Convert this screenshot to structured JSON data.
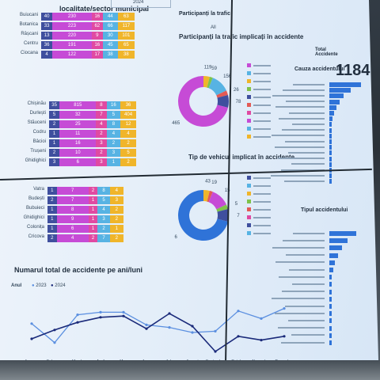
{
  "colors": {
    "c1": "#3f4f9e",
    "c2": "#c64bd6",
    "c3": "#e04aa2",
    "c4": "#57b3e3",
    "c5": "#f0b52a",
    "c6": "#7fc34a",
    "c7": "#e35a55",
    "c8": "#2f73d8"
  },
  "top_left": {
    "title": "localitate/sector municipal",
    "year": "2024"
  },
  "participanti": {
    "header": "Participanți la trafic",
    "filter": "All"
  },
  "total": {
    "label": "Total Accidente",
    "value": "1184"
  },
  "donut1": {
    "title": "Participanți la trafic implicați în accidente",
    "labels": [
      "119",
      "59",
      "156",
      "26",
      "78",
      "465"
    ]
  },
  "donut2": {
    "title": "Tip de vehicul implicat în accidente",
    "labels": [
      "43",
      "19",
      "15",
      "5",
      "7",
      "6"
    ]
  },
  "cauza": {
    "title": "Cauza accidentului"
  },
  "tipul": {
    "title": "Tipul accidentului"
  },
  "line_chart": {
    "title": "Numarul total de accidente pe ani/luni",
    "legend_label": "Anul",
    "series": [
      "2023",
      "2024"
    ],
    "months": [
      "January",
      "February",
      "March",
      "April",
      "May",
      "June",
      "July",
      "August",
      "September",
      "October",
      "November",
      "December"
    ]
  },
  "stacked_group1": {
    "rows": [
      {
        "label": "Buiucani",
        "vals": [
          "40",
          "230",
          "16",
          "44",
          "63"
        ]
      },
      {
        "label": "Botanica",
        "vals": [
          "33",
          "223",
          "62",
          "66",
          "117"
        ]
      },
      {
        "label": "Râșcani",
        "vals": [
          "13",
          "220",
          "9",
          "30",
          "101"
        ]
      },
      {
        "label": "Centru",
        "vals": [
          "36",
          "191",
          "16",
          "45",
          "65"
        ]
      },
      {
        "label": "Ciocana",
        "vals": [
          "4",
          "122",
          "17",
          "38",
          "38"
        ]
      }
    ]
  },
  "stacked_group2": {
    "rows": [
      {
        "label": "Chișinău",
        "vals": [
          "35",
          "815",
          "8",
          "16",
          "36"
        ]
      },
      {
        "label": "Durlești",
        "vals": [
          "5",
          "32",
          "7",
          "5",
          "404"
        ]
      },
      {
        "label": "Stăuceni",
        "vals": [
          "2",
          "25",
          "4",
          "8",
          "12"
        ]
      },
      {
        "label": "Codru",
        "vals": [
          "1",
          "11",
          "2",
          "4",
          "4"
        ]
      },
      {
        "label": "Bâcioi",
        "vals": [
          "1",
          "16",
          "3",
          "2",
          "2"
        ]
      },
      {
        "label": "Trușeni",
        "vals": [
          "2",
          "10",
          "2",
          "3",
          "5"
        ]
      },
      {
        "label": "Ghidighici",
        "vals": [
          "3",
          "6",
          "3",
          "1",
          "2"
        ]
      }
    ]
  },
  "stacked_group3": {
    "rows": [
      {
        "label": "Vatra",
        "vals": [
          "1",
          "7",
          "2",
          "8",
          "4"
        ]
      },
      {
        "label": "Budești",
        "vals": [
          "2",
          "7",
          "1",
          "5",
          "3"
        ]
      },
      {
        "label": "Bubuieci",
        "vals": [
          "1",
          "8",
          "1",
          "4",
          "2"
        ]
      },
      {
        "label": "Ghidighici",
        "vals": [
          "1",
          "9",
          "1",
          "3",
          "2"
        ]
      },
      {
        "label": "Colonița",
        "vals": [
          "1",
          "6",
          "1",
          "2",
          "1"
        ]
      },
      {
        "label": "Cricova",
        "vals": [
          "2",
          "4",
          "2",
          "7",
          "2"
        ]
      }
    ]
  }
}
